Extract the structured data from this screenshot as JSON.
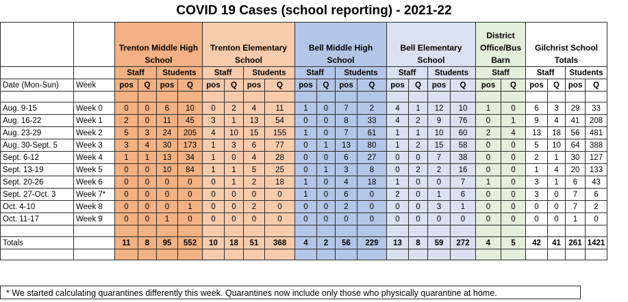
{
  "title": "COVID 19 Cases (school reporting) - 2021-22",
  "schools": [
    {
      "name": "Trenton Middle High School",
      "color": "#f4b183"
    },
    {
      "name": "Trenton Elementary School",
      "color": "#f8cbad"
    },
    {
      "name": "Bell Middle High School",
      "color": "#b4c6e7"
    },
    {
      "name": "Bell Elementary School",
      "color": "#d9e1f2"
    },
    {
      "name": "District Office/Bus Barn",
      "color": "#e2efda"
    },
    {
      "name": "Gilchrist School Totals",
      "color": "#ffffff"
    }
  ],
  "group_labels": {
    "staff": "Staff",
    "students": "Students"
  },
  "sub_labels": {
    "pos": "pos",
    "q": "Q"
  },
  "col_labels": {
    "date": "Date (Mon-Sun)",
    "week": "Week"
  },
  "rows": [
    {
      "date": "Aug. 9-15",
      "week": "Week 0",
      "v": [
        "0",
        "0",
        "6",
        "10",
        "0",
        "2",
        "4",
        "11",
        "1",
        "0",
        "7",
        "2",
        "4",
        "1",
        "12",
        "10",
        "1",
        "0",
        "6",
        "3",
        "29",
        "33"
      ]
    },
    {
      "date": "Aug. 16-22",
      "week": "Week 1",
      "v": [
        "2",
        "0",
        "11",
        "45",
        "3",
        "1",
        "13",
        "54",
        "0",
        "0",
        "8",
        "33",
        "4",
        "2",
        "9",
        "76",
        "0",
        "1",
        "9",
        "4",
        "41",
        "208"
      ]
    },
    {
      "date": "Aug. 23-29",
      "week": "Week 2",
      "v": [
        "5",
        "3",
        "24",
        "205",
        "4",
        "10",
        "15",
        "155",
        "1",
        "0",
        "7",
        "61",
        "1",
        "1",
        "10",
        "60",
        "2",
        "4",
        "13",
        "18",
        "56",
        "481"
      ]
    },
    {
      "date": "Aug. 30-Sept. 5",
      "week": "Week 3",
      "v": [
        "3",
        "4",
        "30",
        "173",
        "1",
        "3",
        "6",
        "77",
        "0",
        "1",
        "13",
        "80",
        "1",
        "2",
        "15",
        "58",
        "0",
        "0",
        "5",
        "10",
        "64",
        "388"
      ]
    },
    {
      "date": "Sept. 6-12",
      "week": "Week 4",
      "v": [
        "1",
        "1",
        "13",
        "34",
        "1",
        "0",
        "4",
        "28",
        "0",
        "0",
        "6",
        "27",
        "0",
        "0",
        "7",
        "38",
        "0",
        "0",
        "2",
        "1",
        "30",
        "127"
      ]
    },
    {
      "date": "Sept. 13-19",
      "week": "Week 5",
      "v": [
        "0",
        "0",
        "10",
        "84",
        "1",
        "1",
        "5",
        "25",
        "0",
        "1",
        "3",
        "8",
        "0",
        "2",
        "2",
        "16",
        "0",
        "0",
        "1",
        "4",
        "20",
        "133"
      ]
    },
    {
      "date": "Sept. 20-26",
      "week": "Week 6",
      "v": [
        "0",
        "0",
        "0",
        "0",
        "0",
        "1",
        "2",
        "18",
        "1",
        "0",
        "4",
        "18",
        "1",
        "0",
        "0",
        "7",
        "1",
        "0",
        "3",
        "1",
        "6",
        "43"
      ]
    },
    {
      "date": "Sept. 27-Oct. 3",
      "week": "Week 7*",
      "v": [
        "0",
        "0",
        "0",
        "0",
        "0",
        "0",
        "0",
        "0",
        "1",
        "0",
        "6",
        "0",
        "2",
        "0",
        "1",
        "6",
        "0",
        "0",
        "3",
        "0",
        "7",
        "6"
      ]
    },
    {
      "date": "Oct. 4-10",
      "week": "Week 8",
      "v": [
        "0",
        "0",
        "0",
        "1",
        "0",
        "0",
        "2",
        "0",
        "0",
        "0",
        "2",
        "0",
        "0",
        "0",
        "3",
        "1",
        "0",
        "0",
        "0",
        "0",
        "7",
        "2"
      ]
    },
    {
      "date": "Oct. 11-17",
      "week": "Week 9",
      "v": [
        "0",
        "0",
        "1",
        "0",
        "0",
        "0",
        "0",
        "0",
        "0",
        "0",
        "0",
        "0",
        "0",
        "0",
        "0",
        "0",
        "0",
        "0",
        "0",
        "0",
        "1",
        "0"
      ]
    }
  ],
  "totals": {
    "label": "Totals",
    "v": [
      "11",
      "8",
      "95",
      "552",
      "10",
      "18",
      "51",
      "368",
      "4",
      "2",
      "56",
      "229",
      "13",
      "8",
      "59",
      "272",
      "4",
      "5",
      "42",
      "41",
      "261",
      "1421"
    ]
  },
  "footnote": "* We started calculating quarantines differently this week. Quarantines now include only those who physically quarantine at home."
}
